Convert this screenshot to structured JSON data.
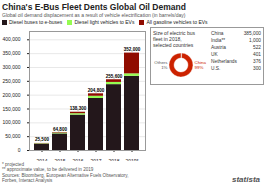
{
  "chart_data": [
    {
      "type": "bar",
      "title": "China's E-Bus Fleet Dents Global Oil Demand",
      "subtitle": "Global oil demand displacement as a result of vehicle electrification (in barrels/day)",
      "categories": [
        "2014",
        "2015",
        "2016",
        "2017",
        "2018",
        "2019*"
      ],
      "series": [
        {
          "name": "Diesel buses to e-buses",
          "values": [
            23000,
            60000,
            128000,
            188000,
            238000,
            268000
          ]
        },
        {
          "name": "Diesel light vehicles to EVs",
          "values": [
            1500,
            3000,
            5000,
            8000,
            8000,
            9000
          ]
        },
        {
          "name": "All gasoline vehicles to EVs",
          "values": [
            1000,
            1800,
            5300,
            8800,
            9600,
            75000
          ]
        }
      ],
      "stacked": true,
      "totals": [
        25500,
        64800,
        138300,
        204800,
        255600,
        352000
      ],
      "total_labels": [
        "25,500",
        "64,800",
        "138,300",
        "204,800",
        "255,600",
        "352,000"
      ],
      "ylim": [
        0,
        430000
      ],
      "yticks": [
        0,
        {
          "value": 50000,
          "label": "50,000"
        },
        {
          "value": 100000,
          "label": "100,000"
        },
        {
          "value": 150000,
          "label": "150,000"
        },
        {
          "value": 200000,
          "label": "200,000"
        },
        {
          "value": 250000,
          "label": "250,000"
        },
        {
          "value": 300000,
          "label": "300,000"
        },
        {
          "value": 350000,
          "label": "350,000"
        },
        {
          "value": 400000,
          "label": "400,000"
        }
      ],
      "grid": true,
      "legend": "top",
      "footnotes": [
        "* projected",
        "** approximate value, to be delivered in 2019",
        "Sources: Bloomberg, European Alternative Fuels Observatory,",
        "Forbes, Interact Analysis"
      ],
      "annotations": [
        "statista"
      ]
    },
    {
      "type": "pie",
      "title": "Size of electric bus\nfleet in 2018,\nselected countries",
      "categories": [
        "Others",
        "China"
      ],
      "values": [
        1,
        99
      ],
      "value_labels": [
        "1%",
        "99%"
      ],
      "colors": [
        "#AAAAAA",
        "#CC2200"
      ],
      "data_labels": true
    },
    {
      "type": "table",
      "categories": [
        "China",
        "India**",
        "Austria",
        "UK",
        "Netherlands",
        "U.S."
      ],
      "values": [
        385000,
        1000,
        522,
        401,
        376,
        300
      ],
      "value_labels": [
        "385,000",
        "1,000",
        "522",
        "401",
        "376",
        "300"
      ]
    }
  ]
}
